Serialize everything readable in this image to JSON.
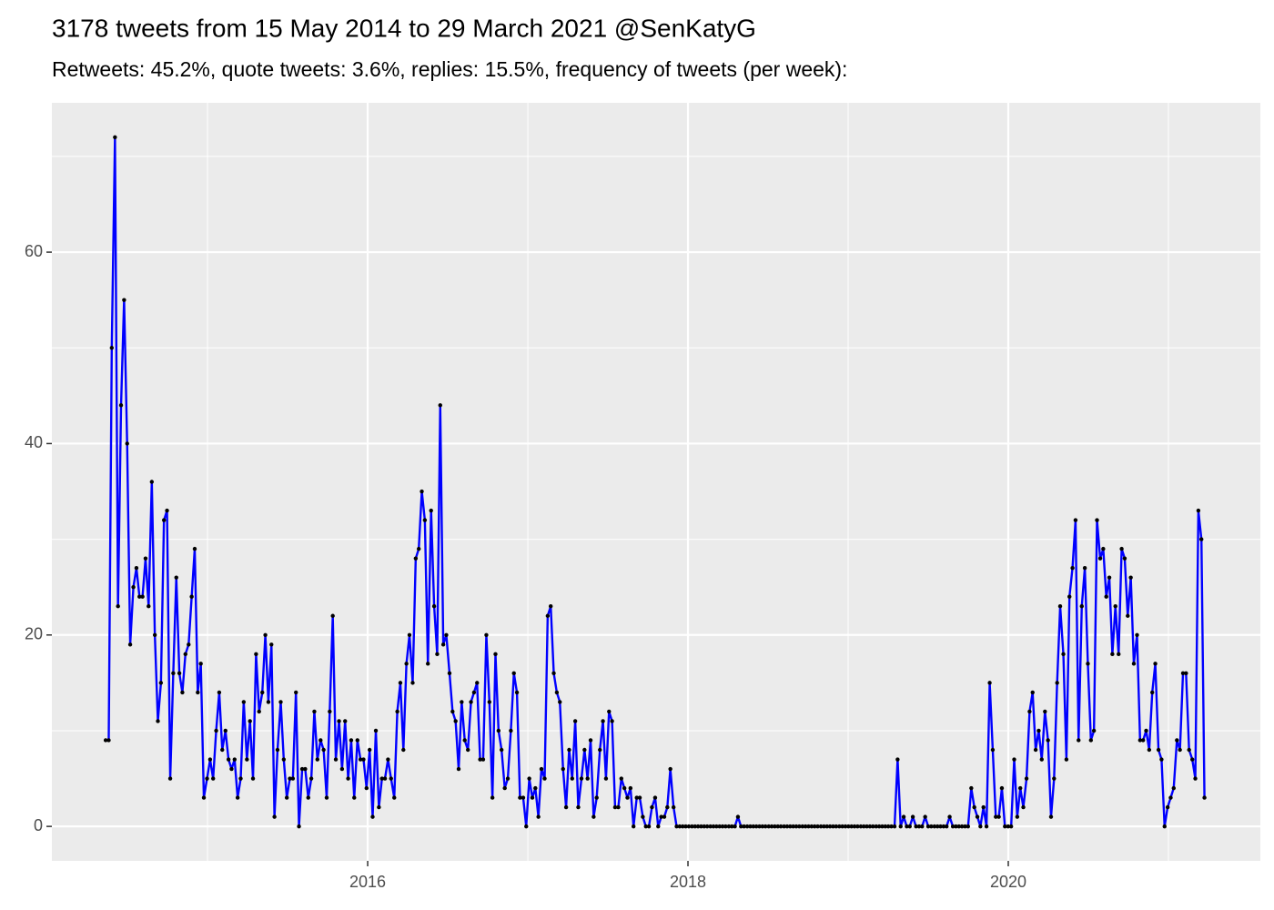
{
  "chart_data": {
    "type": "line",
    "title": "3178 tweets from 15 May 2014 to 29 March 2021 @SenKatyG",
    "subtitle": "Retweets: 45.2%, quote tweets: 3.6%, replies: 15.5%, frequency of tweets (per week):",
    "xlim": [
      2014.028,
      2021.574
    ],
    "xticks": [
      2016,
      2018,
      2020
    ],
    "x_minor_ticks": [
      2015,
      2017,
      2019,
      2021
    ],
    "ylim": [
      -3.6,
      75.6
    ],
    "yticks": [
      0,
      20,
      40,
      60
    ],
    "y_minor_ticks": [
      10,
      30,
      50,
      70
    ],
    "grid": true,
    "background": "#ebebeb",
    "point_color": "#000000",
    "x": [
      2014.364,
      2014.383,
      2014.402,
      2014.422,
      2014.441,
      2014.46,
      2014.479,
      2014.498,
      2014.517,
      2014.537,
      2014.556,
      2014.575,
      2014.594,
      2014.613,
      2014.632,
      2014.652,
      2014.671,
      2014.69,
      2014.709,
      2014.728,
      2014.747,
      2014.767,
      2014.786,
      2014.805,
      2014.824,
      2014.843,
      2014.862,
      2014.882,
      2014.901,
      2014.92,
      2014.939,
      2014.958,
      2014.977,
      2014.997,
      2015.016,
      2015.035,
      2015.054,
      2015.073,
      2015.092,
      2015.112,
      2015.131,
      2015.15,
      2015.169,
      2015.188,
      2015.207,
      2015.226,
      2015.246,
      2015.265,
      2015.284,
      2015.303,
      2015.322,
      2015.342,
      2015.361,
      2015.38,
      2015.399,
      2015.418,
      2015.437,
      2015.457,
      2015.476,
      2015.495,
      2015.514,
      2015.533,
      2015.552,
      2015.571,
      2015.591,
      2015.61,
      2015.629,
      2015.648,
      2015.667,
      2015.686,
      2015.706,
      2015.725,
      2015.744,
      2015.763,
      2015.782,
      2015.801,
      2015.821,
      2015.84,
      2015.859,
      2015.878,
      2015.897,
      2015.916,
      2015.936,
      2015.955,
      2015.974,
      2015.993,
      2016.012,
      2016.031,
      2016.051,
      2016.07,
      2016.089,
      2016.108,
      2016.127,
      2016.146,
      2016.166,
      2016.185,
      2016.204,
      2016.223,
      2016.242,
      2016.261,
      2016.281,
      2016.3,
      2016.319,
      2016.338,
      2016.357,
      2016.376,
      2016.396,
      2016.415,
      2016.434,
      2016.453,
      2016.472,
      2016.491,
      2016.511,
      2016.53,
      2016.549,
      2016.568,
      2016.587,
      2016.606,
      2016.626,
      2016.645,
      2016.664,
      2016.683,
      2016.702,
      2016.721,
      2016.741,
      2016.76,
      2016.779,
      2016.798,
      2016.817,
      2016.836,
      2016.856,
      2016.875,
      2016.894,
      2016.913,
      2016.932,
      2016.951,
      2016.971,
      2016.99,
      2017.009,
      2017.028,
      2017.047,
      2017.066,
      2017.085,
      2017.105,
      2017.124,
      2017.143,
      2017.162,
      2017.181,
      2017.2,
      2017.22,
      2017.239,
      2017.258,
      2017.277,
      2017.296,
      2017.315,
      2017.335,
      2017.354,
      2017.373,
      2017.392,
      2017.411,
      2017.43,
      2017.45,
      2017.469,
      2017.488,
      2017.507,
      2017.526,
      2017.545,
      2017.565,
      2017.584,
      2017.603,
      2017.622,
      2017.641,
      2017.66,
      2017.68,
      2017.699,
      2017.718,
      2017.737,
      2017.756,
      2017.775,
      2017.795,
      2017.814,
      2017.833,
      2017.852,
      2017.871,
      2017.89,
      2017.91,
      2017.929,
      2017.948,
      2017.967,
      2017.986,
      2018.005,
      2018.025,
      2018.044,
      2018.063,
      2018.082,
      2018.101,
      2018.12,
      2018.14,
      2018.159,
      2018.178,
      2018.197,
      2018.216,
      2018.235,
      2018.255,
      2018.274,
      2018.293,
      2018.312,
      2018.331,
      2018.35,
      2018.37,
      2018.389,
      2018.408,
      2018.427,
      2018.446,
      2018.465,
      2018.484,
      2018.504,
      2018.523,
      2018.542,
      2018.561,
      2018.58,
      2018.6,
      2018.619,
      2018.638,
      2018.657,
      2018.676,
      2018.695,
      2018.715,
      2018.734,
      2018.753,
      2018.772,
      2018.791,
      2018.81,
      2018.83,
      2018.849,
      2018.868,
      2018.887,
      2018.906,
      2018.925,
      2018.945,
      2018.964,
      2018.983,
      2019.002,
      2019.021,
      2019.04,
      2019.059,
      2019.079,
      2019.098,
      2019.117,
      2019.136,
      2019.155,
      2019.175,
      2019.194,
      2019.213,
      2019.232,
      2019.251,
      2019.27,
      2019.29,
      2019.309,
      2019.328,
      2019.347,
      2019.366,
      2019.385,
      2019.404,
      2019.424,
      2019.443,
      2019.462,
      2019.481,
      2019.5,
      2019.519,
      2019.539,
      2019.558,
      2019.577,
      2019.596,
      2019.615,
      2019.634,
      2019.654,
      2019.673,
      2019.692,
      2019.711,
      2019.73,
      2019.749,
      2019.769,
      2019.788,
      2019.807,
      2019.826,
      2019.845,
      2019.864,
      2019.884,
      2019.903,
      2019.922,
      2019.941,
      2019.96,
      2019.979,
      2019.999,
      2020.018,
      2020.037,
      2020.056,
      2020.075,
      2020.094,
      2020.114,
      2020.133,
      2020.152,
      2020.171,
      2020.19,
      2020.209,
      2020.229,
      2020.248,
      2020.267,
      2020.286,
      2020.305,
      2020.324,
      2020.344,
      2020.363,
      2020.382,
      2020.401,
      2020.42,
      2020.439,
      2020.459,
      2020.478,
      2020.497,
      2020.516,
      2020.535,
      2020.554,
      2020.574,
      2020.593,
      2020.612,
      2020.631,
      2020.65,
      2020.669,
      2020.689,
      2020.708,
      2020.727,
      2020.746,
      2020.765,
      2020.784,
      2020.804,
      2020.823,
      2020.842,
      2020.861,
      2020.88,
      2020.899,
      2020.918,
      2020.938,
      2020.957,
      2020.976,
      2020.995,
      2021.014,
      2021.033,
      2021.053,
      2021.072,
      2021.091,
      2021.11,
      2021.129,
      2021.149,
      2021.168,
      2021.187,
      2021.206,
      2021.225
    ],
    "series": [
      {
        "color": "#0000ff",
        "values": [
          9,
          9,
          50,
          72,
          23,
          44,
          55,
          40,
          19,
          25,
          27,
          24,
          24,
          28,
          23,
          36,
          20,
          11,
          15,
          32,
          33,
          5,
          16,
          26,
          16,
          14,
          18,
          19,
          24,
          29,
          14,
          17,
          3,
          5,
          7,
          5,
          10,
          14,
          8,
          10,
          7,
          6,
          7,
          3,
          5,
          13,
          7,
          11,
          5,
          18,
          12,
          14,
          20,
          13,
          19,
          1,
          8,
          13,
          7,
          3,
          5,
          5,
          14,
          0,
          6,
          6,
          3,
          5,
          12,
          7,
          9,
          8,
          3,
          12,
          22,
          7,
          11,
          6,
          11,
          5,
          9,
          3,
          9,
          7,
          7,
          4,
          8,
          1,
          10,
          2,
          5,
          5,
          7,
          5,
          3,
          12,
          15,
          8,
          17,
          20,
          15,
          28,
          29,
          35,
          32,
          17,
          33,
          23,
          18,
          44,
          19,
          20,
          16,
          12,
          11,
          6,
          13,
          9,
          8,
          13,
          14,
          15,
          7,
          7,
          20,
          13,
          3,
          18,
          10,
          8,
          4,
          5,
          10,
          16,
          14,
          3,
          3,
          0,
          5,
          3,
          4,
          1,
          6,
          5,
          22,
          23,
          16,
          14,
          13,
          6,
          2,
          8,
          5,
          11,
          2,
          5,
          8,
          5,
          9,
          1,
          3,
          8,
          11,
          5,
          12,
          11,
          2,
          2,
          5,
          4,
          3,
          4,
          0,
          3,
          3,
          1,
          0,
          0,
          2,
          3,
          0,
          1,
          1,
          2,
          6,
          2,
          0,
          0,
          0,
          0,
          0,
          0,
          0,
          0,
          0,
          0,
          0,
          0,
          0,
          0,
          0,
          0,
          0,
          0,
          0,
          0,
          1,
          0,
          0,
          0,
          0,
          0,
          0,
          0,
          0,
          0,
          0,
          0,
          0,
          0,
          0,
          0,
          0,
          0,
          0,
          0,
          0,
          0,
          0,
          0,
          0,
          0,
          0,
          0,
          0,
          0,
          0,
          0,
          0,
          0,
          0,
          0,
          0,
          0,
          0,
          0,
          0,
          0,
          0,
          0,
          0,
          0,
          0,
          0,
          0,
          0,
          0,
          0,
          7,
          0,
          1,
          0,
          0,
          1,
          0,
          0,
          0,
          1,
          0,
          0,
          0,
          0,
          0,
          0,
          0,
          1,
          0,
          0,
          0,
          0,
          0,
          0,
          4,
          2,
          1,
          0,
          2,
          0,
          15,
          8,
          1,
          1,
          4,
          0,
          0,
          0,
          7,
          1,
          4,
          2,
          5,
          12,
          14,
          8,
          10,
          7,
          12,
          9,
          1,
          5,
          15,
          23,
          18,
          7,
          24,
          27,
          32,
          9,
          23,
          27,
          17,
          9,
          10,
          32,
          28,
          29,
          24,
          26,
          18,
          23,
          18,
          29,
          28,
          22,
          26,
          17,
          20,
          9,
          9,
          10,
          8,
          14,
          17,
          8,
          7,
          0,
          2,
          3,
          4,
          9,
          8,
          16,
          16,
          8,
          7,
          5,
          33,
          30,
          3
        ]
      }
    ]
  }
}
